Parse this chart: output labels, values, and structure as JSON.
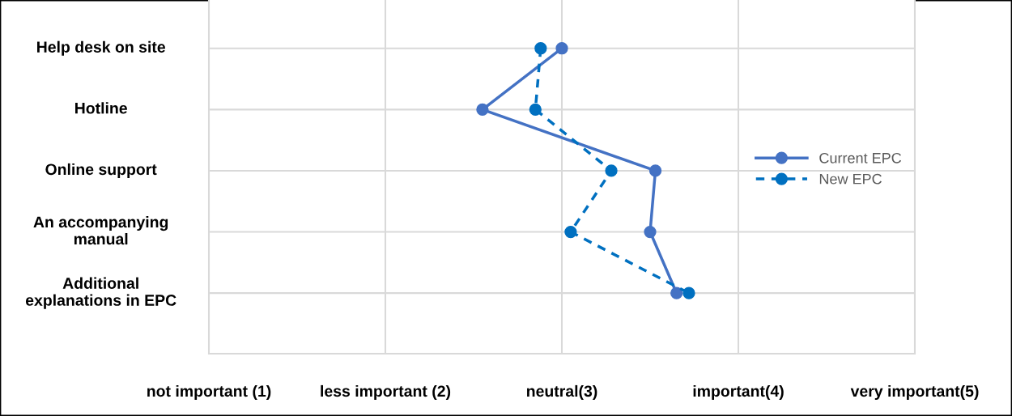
{
  "chart_data": {
    "type": "line",
    "orientation": "horizontal",
    "categories": [
      "Help desk on site",
      "Hotline",
      "Online support",
      "An accompanying\nmanual",
      "Additional\nexplanations in EPC"
    ],
    "series": [
      {
        "name": "Current EPC",
        "color": "#4472c4",
        "values": [
          3.0,
          2.55,
          3.53,
          3.5,
          3.65
        ],
        "line_style": "solid"
      },
      {
        "name": "New EPC",
        "color": "#0070c0",
        "values": [
          2.88,
          2.85,
          3.28,
          3.05,
          3.72
        ],
        "line_style": "dashed"
      }
    ],
    "xlim": [
      1,
      5
    ],
    "xticks": [
      {
        "value": 1,
        "label": "not important (1)"
      },
      {
        "value": 2,
        "label": "less important (2)"
      },
      {
        "value": 3,
        "label": "neutral(3)"
      },
      {
        "value": 4,
        "label": "important(4)"
      },
      {
        "value": 5,
        "label": "very important(5)"
      }
    ],
    "grid": true,
    "legend": "right",
    "marker": "circle"
  }
}
